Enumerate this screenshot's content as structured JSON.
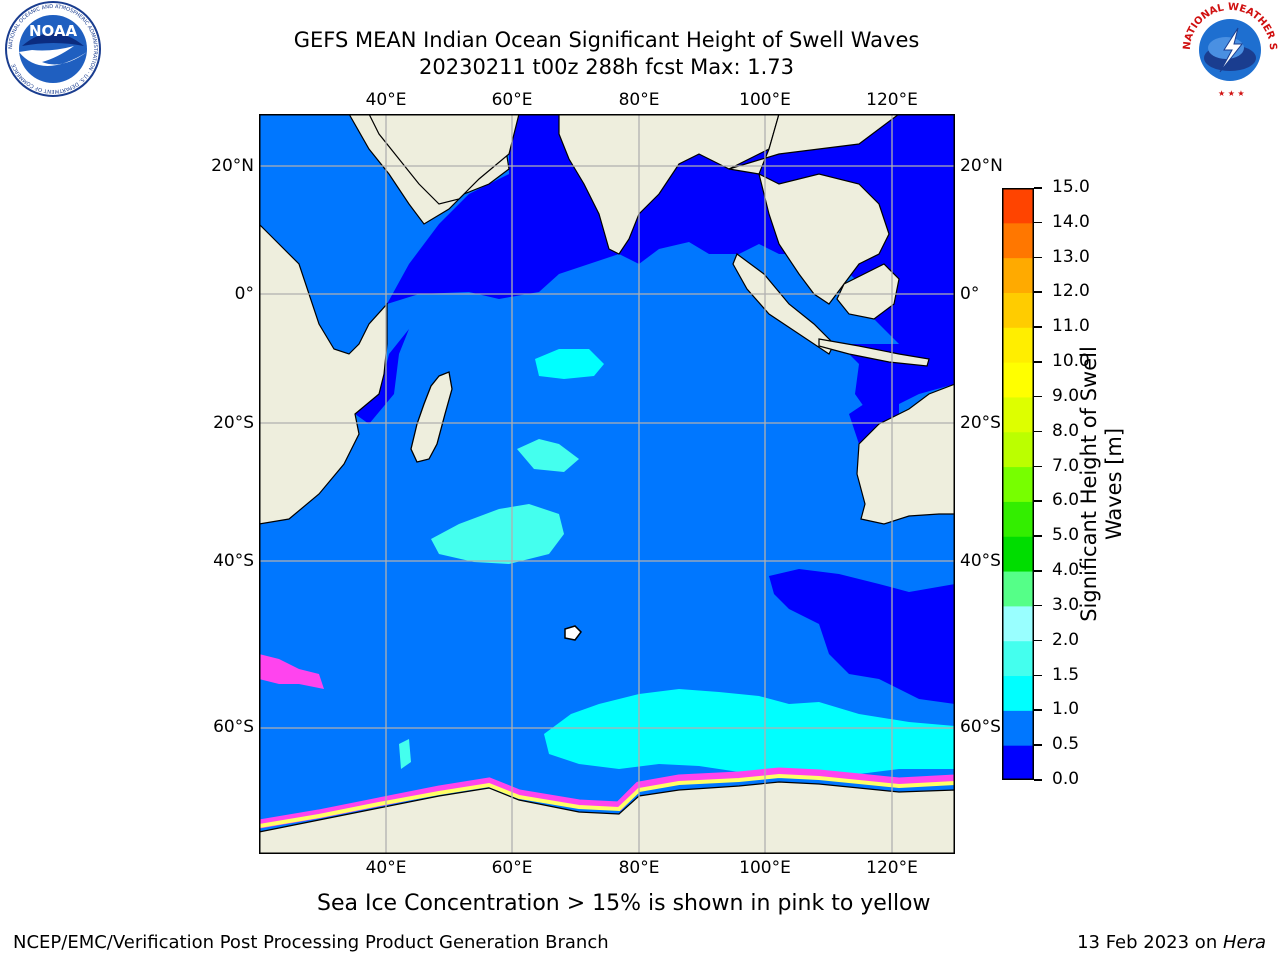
{
  "header": {
    "title_line1": "GEFS MEAN Indian Ocean Significant Height of Swell Waves",
    "title_line2": "20230211 t00z 288h fcst   Max: 1.73"
  },
  "logos": {
    "noara_text": "NOAA",
    "noaa_ring_text": "NATIONAL OCEANIC AND ATMOSPHERIC ADMINISTRATION · U.S. DEPARTMENT OF COMMERCE",
    "nws_ring_text": "NATIONAL WEATHER SERVICE"
  },
  "map": {
    "lon_labels": [
      "40°E",
      "60°E",
      "80°E",
      "100°E",
      "120°E"
    ],
    "lat_labels": [
      "20°N",
      "0°",
      "20°S",
      "40°S",
      "60°S"
    ],
    "colors": {
      "land": "#eeeedd",
      "ocean_low": "#0000ff",
      "ocean_mid": "#0077ff",
      "ocean_cyan": "#00ffff",
      "ocean_lightcyan": "#66ffff",
      "ice_pink": "#ff44ee",
      "ice_yellow": "#ffff66",
      "grid": "#b0b0b0"
    }
  },
  "colorbar": {
    "title_line1": "Significant Height of Swell",
    "title_line2": "Waves [m]",
    "levels": [
      "0.0",
      "0.5",
      "1.0",
      "1.5",
      "2.0",
      "3.0",
      "4.0",
      "5.0",
      "6.0",
      "7.0",
      "8.0",
      "9.0",
      "10.0",
      "11.0",
      "12.0",
      "13.0",
      "14.0",
      "15.0"
    ],
    "colors": [
      "#0000ff",
      "#0077ff",
      "#00ffff",
      "#44ffee",
      "#99ffff",
      "#55ff88",
      "#00dd00",
      "#33ee00",
      "#77ff00",
      "#bbff00",
      "#ddff00",
      "#ffff00",
      "#ffee00",
      "#ffcc00",
      "#ffaa00",
      "#ff7700",
      "#ff4400",
      "#ff0000"
    ]
  },
  "note": "Sea Ice Concentration > 15% is shown in pink to yellow",
  "footer": {
    "left": "NCEP/EMC/Verification Post Processing Product Generation Branch",
    "right_prefix": "13 Feb 2023 on ",
    "right_host": "Hera"
  }
}
